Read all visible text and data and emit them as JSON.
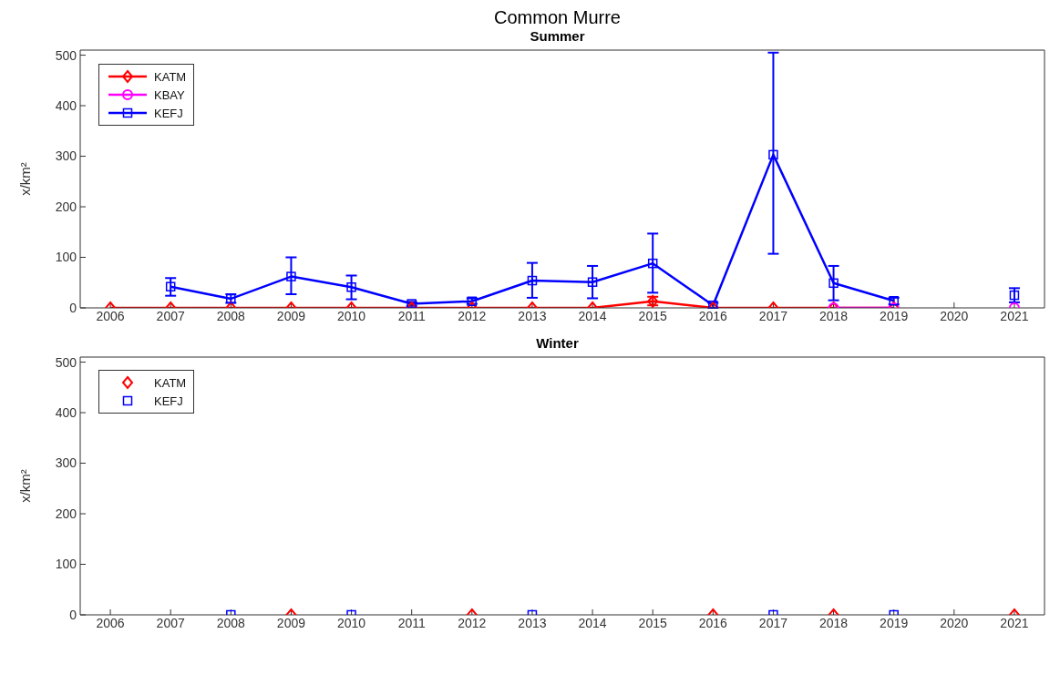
{
  "chart_data": [
    {
      "type": "line",
      "title": "Common Murre",
      "subtitle": "Summer",
      "ylabel": "x/km²",
      "categories": [
        "2006",
        "2007",
        "2008",
        "2009",
        "2010",
        "2011",
        "2012",
        "2013",
        "2014",
        "2015",
        "2016",
        "2017",
        "2018",
        "2019",
        "2020",
        "2021"
      ],
      "ylim": [
        0,
        510
      ],
      "yticks": [
        0,
        100,
        200,
        300,
        400,
        500
      ],
      "grid": false,
      "legend": "top left",
      "line_style": "solid",
      "series": [
        {
          "name": "KATM",
          "color": "#ff0000",
          "marker": "diamond",
          "values": [
            0,
            0,
            0,
            0,
            0,
            0,
            0,
            0,
            0,
            13,
            0,
            0,
            0,
            0,
            null,
            null
          ],
          "errors": [
            null,
            null,
            null,
            null,
            null,
            null,
            null,
            null,
            null,
            [
              5,
              22
            ],
            null,
            null,
            null,
            null,
            null,
            null
          ]
        },
        {
          "name": "KBAY",
          "color": "#ff00ff",
          "marker": "circle",
          "values": [
            null,
            null,
            null,
            null,
            null,
            null,
            null,
            null,
            null,
            null,
            null,
            null,
            0,
            0,
            null,
            0
          ]
        },
        {
          "name": "KEFJ",
          "color": "#0000ff",
          "marker": "square",
          "values": [
            null,
            42,
            18,
            62,
            41,
            8,
            13,
            54,
            51,
            88,
            5,
            303,
            49,
            14,
            null,
            25
          ],
          "errors": [
            null,
            [
              24,
              59
            ],
            [
              10,
              27
            ],
            [
              27,
              100
            ],
            [
              17,
              64
            ],
            [
              4,
              12
            ],
            [
              8,
              19
            ],
            [
              20,
              89
            ],
            [
              19,
              83
            ],
            [
              30,
              147
            ],
            [
              0,
              10
            ],
            [
              107,
              505
            ],
            [
              15,
              83
            ],
            [
              7,
              20
            ],
            null,
            [
              11,
              39
            ]
          ]
        }
      ]
    },
    {
      "type": "scatter",
      "title": "Winter",
      "ylabel": "x/km²",
      "categories": [
        "2006",
        "2007",
        "2008",
        "2009",
        "2010",
        "2011",
        "2012",
        "2013",
        "2014",
        "2015",
        "2016",
        "2017",
        "2018",
        "2019",
        "2020",
        "2021"
      ],
      "ylim": [
        0,
        510
      ],
      "yticks": [
        0,
        100,
        200,
        300,
        400,
        500
      ],
      "grid": false,
      "legend": "top left",
      "series": [
        {
          "name": "KATM",
          "color": "#ff0000",
          "marker": "diamond",
          "values": [
            null,
            null,
            null,
            0,
            null,
            null,
            0,
            null,
            null,
            null,
            0,
            null,
            0,
            null,
            null,
            0
          ]
        },
        {
          "name": "KEFJ",
          "color": "#0000ff",
          "marker": "square",
          "values": [
            null,
            null,
            0,
            null,
            0,
            null,
            null,
            0,
            null,
            null,
            null,
            0,
            null,
            0,
            null,
            null
          ]
        }
      ]
    }
  ]
}
